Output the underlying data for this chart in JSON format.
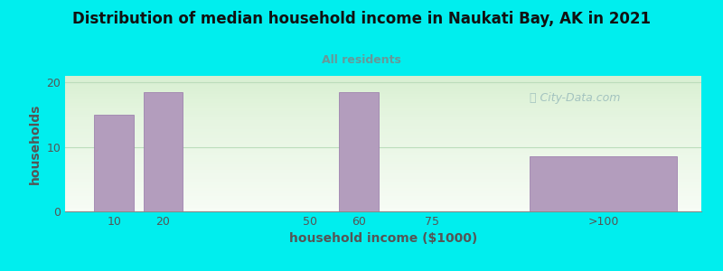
{
  "title": "Distribution of median household income in Naukati Bay, AK in 2021",
  "subtitle": "All residents",
  "xlabel": "household income ($1000)",
  "ylabel": "households",
  "background_color": "#00EEEE",
  "plot_bg_top": "#e8f5e8",
  "plot_bg_bottom": "#f8fff8",
  "bar_color": "#b39dbd",
  "bar_edge_color": "#9575a8",
  "subtitle_color": "#669999",
  "title_color": "#111111",
  "categories": [
    "10",
    "20",
    "50",
    "60",
    "75",
    ">100"
  ],
  "x_positions": [
    10,
    20,
    50,
    60,
    75,
    110
  ],
  "bar_widths": [
    8,
    8,
    0,
    8,
    0,
    30
  ],
  "values": [
    15,
    18.5,
    0,
    18.5,
    0,
    8.5
  ],
  "ylim": [
    0,
    21
  ],
  "yticks": [
    0,
    10,
    20
  ],
  "grid_color": "#bbddbb",
  "watermark_text": "City-Data.com",
  "watermark_color": "#99bbbb",
  "xlim": [
    0,
    130
  ]
}
